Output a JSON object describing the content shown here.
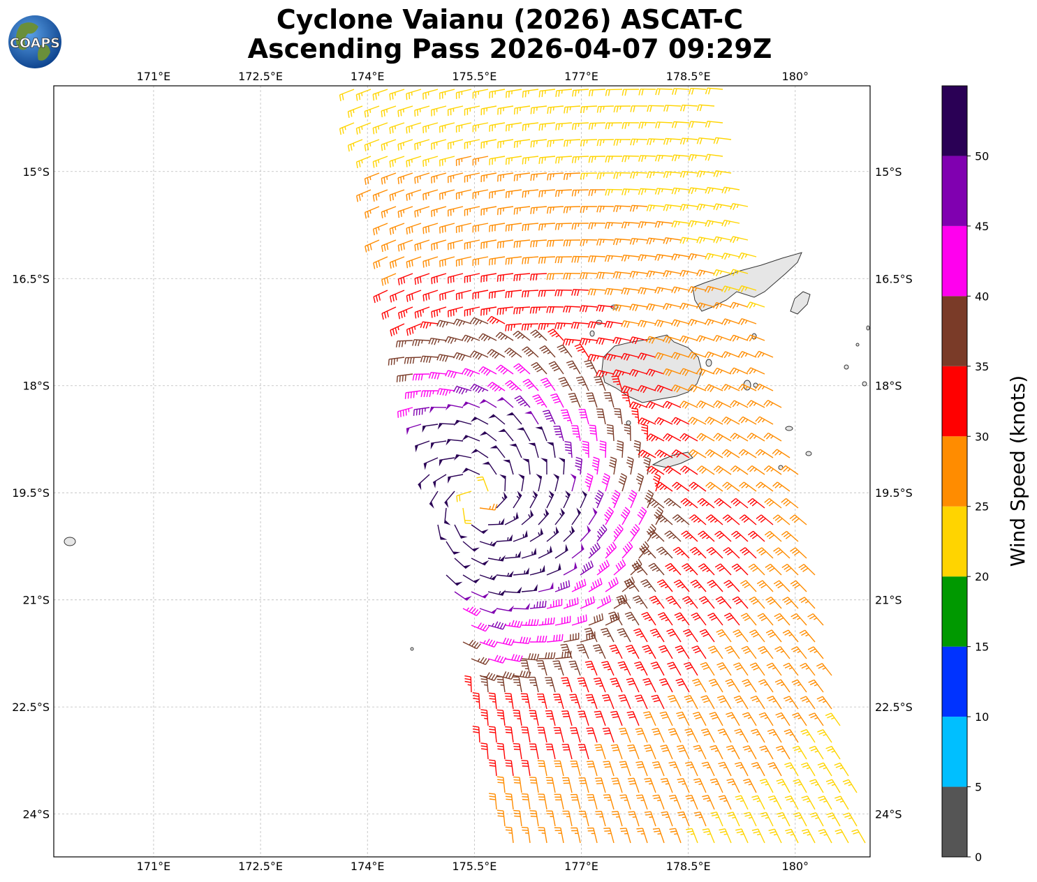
{
  "title_line1": "Cyclone Vaianu (2026) ASCAT-C",
  "title_line2": "Ascending Pass 2026-04-07 09:29Z",
  "logo_text": "COAPS",
  "map": {
    "lon_ticks": [
      "171°E",
      "172.5°E",
      "174°E",
      "175.5°E",
      "177°E",
      "178.5°E",
      "180°"
    ],
    "lat_ticks": [
      "15°S",
      "16.5°S",
      "18°S",
      "19.5°S",
      "21°S",
      "22.5°S",
      "24°S"
    ],
    "lon_range": [
      169.6,
      181.05
    ],
    "lat_range": [
      -13.8,
      -24.6
    ],
    "center": {
      "lon": 175.55,
      "lat": -19.6
    }
  },
  "colorbar": {
    "label": "Wind Speed (knots)",
    "ticks": [
      "0",
      "5",
      "10",
      "15",
      "20",
      "25",
      "30",
      "35",
      "40",
      "45",
      "50"
    ],
    "colors": [
      "#555555",
      "#00bfff",
      "#0033ff",
      "#009900",
      "#ffd400",
      "#ff8c00",
      "#ff0000",
      "#7a3b28",
      "#ff00ee",
      "#8000b0",
      "#2a0055"
    ]
  }
}
